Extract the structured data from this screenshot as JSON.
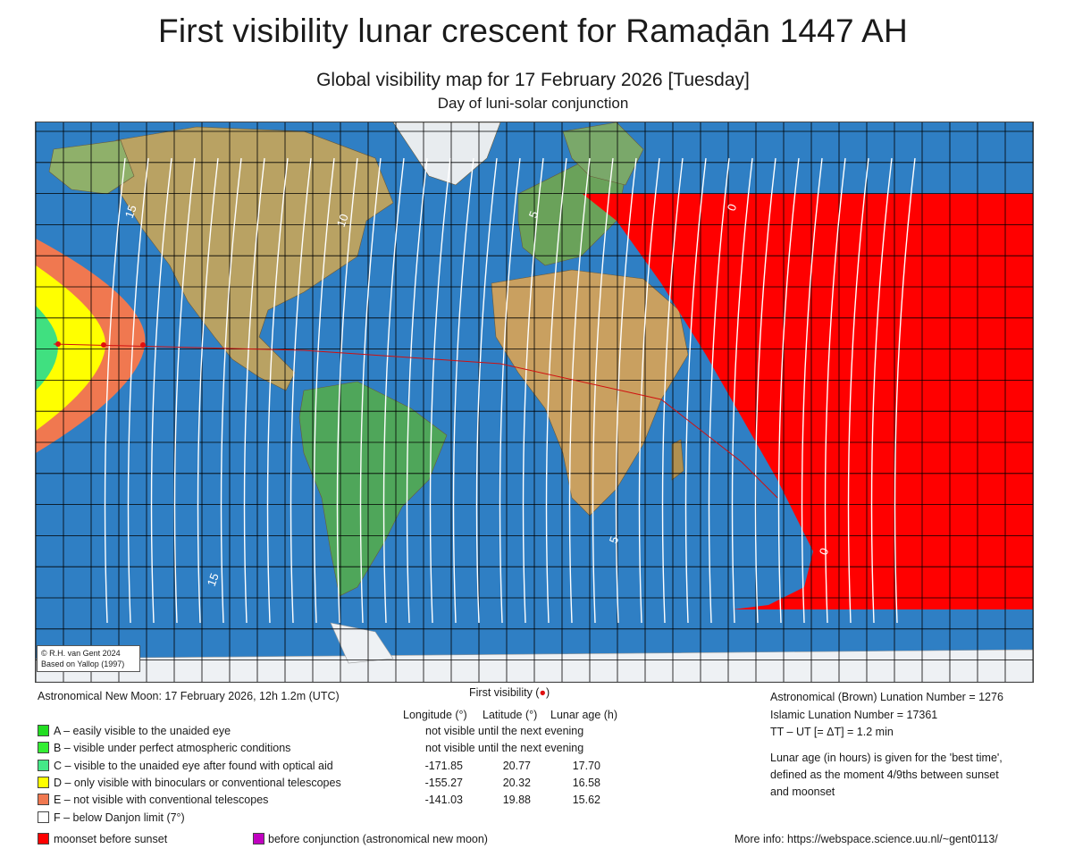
{
  "title": "First visibility lunar crescent for Ramaḍān 1447 AH",
  "subtitle": "Global visibility map for 17 February 2026 [Tuesday]",
  "subtitle2": "Day of luni-solar conjunction",
  "map": {
    "credit_line1": "© R.H. van Gent 2024",
    "credit_line2": "Based on Yallop (1997)",
    "contour_labels": [
      "15",
      "10",
      "5",
      "0",
      "15",
      "5",
      "0"
    ],
    "colors": {
      "ocean": "#2f7fc4",
      "zone_e": "#f07850",
      "zone_d": "#ffff00",
      "zone_c": "#40e080",
      "moonset_before_sunset": "#ff0000",
      "first_visibility_marker": "#e01010"
    }
  },
  "new_moon": "Astronomical New Moon: 17 February 2026, 12h 1.2m (UTC)",
  "first_visibility": {
    "heading": "First visibility (",
    "heading_close": ")",
    "columns": [
      "Longitude (°)",
      "Latitude (°)",
      "Lunar age (h)"
    ]
  },
  "legend": [
    {
      "label": "A – easily visible to the unaided eye",
      "color": "#22dd22",
      "row_text": "not visible until the next evening"
    },
    {
      "label": "B – visible under perfect atmospheric conditions",
      "color": "#33ee33",
      "row_text": "not visible until the next evening"
    },
    {
      "label": "C – visible to the unaided eye after found with optical aid",
      "color": "#44e888",
      "longitude": "-171.85",
      "latitude": "20.77",
      "age": "17.70"
    },
    {
      "label": "D – only visible with binoculars or conventional telescopes",
      "color": "#ffff00",
      "longitude": "-155.27",
      "latitude": "20.32",
      "age": "16.58"
    },
    {
      "label": "E – not visible with conventional telescopes",
      "color": "#f07850",
      "longitude": "-141.03",
      "latitude": "19.88",
      "age": "15.62"
    },
    {
      "label": "F – below Danjon limit (7°)",
      "color": "#ffffff"
    }
  ],
  "moonset_label": "moonset before sunset",
  "moonset_color": "#ff0000",
  "before_conj_label": "before conjunction (astronomical new moon)",
  "before_conj_color": "#c000c0",
  "lunation": {
    "brown": "Astronomical (Brown) Lunation Number = 1276",
    "islamic": "Islamic Lunation Number = 17361",
    "deltat": "TT – UT [= ΔT] = 1.2 min",
    "note1": "Lunar age (in hours) is given for the 'best time',",
    "note2": "defined as the moment 4/9ths between sunset",
    "note3": "and moonset"
  },
  "more_info": "More info: https://webspace.science.uu.nl/~gent0113/"
}
